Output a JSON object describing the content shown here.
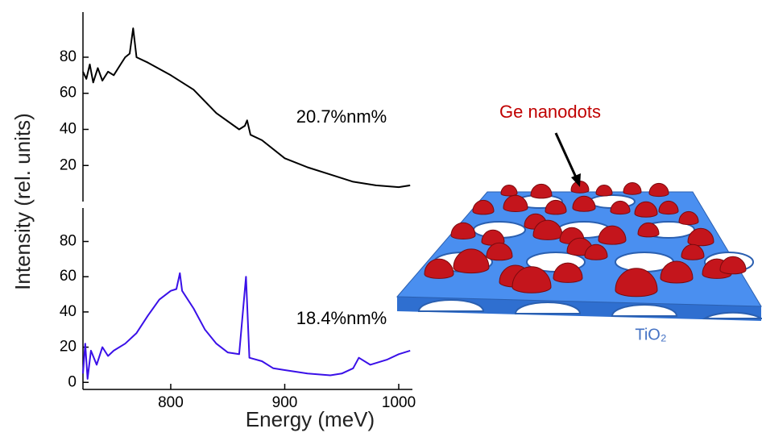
{
  "chart_data": [
    {
      "type": "line",
      "ylabel": "Intensity (rel. units)",
      "annotation": "20.7%nm%",
      "xlim": [
        723,
        1012
      ],
      "ylim": [
        0,
        105
      ],
      "yticks": [
        20,
        40,
        60,
        80
      ],
      "x": [
        723,
        726,
        729,
        732,
        736,
        740,
        745,
        750,
        756,
        760,
        764,
        767,
        770,
        780,
        800,
        820,
        840,
        860,
        865,
        867,
        870,
        880,
        900,
        920,
        940,
        960,
        980,
        1000,
        1010
      ],
      "series": [
        {
          "color": "#000000",
          "values": [
            72,
            68,
            76,
            66,
            74,
            67,
            72,
            70,
            76,
            80,
            82,
            96,
            80,
            77,
            70,
            62,
            49,
            40,
            42,
            45,
            37,
            34,
            24,
            19,
            15,
            11,
            9,
            8,
            9
          ]
        }
      ]
    },
    {
      "type": "line",
      "xlabel": "Energy (meV)",
      "annotation": "18.4%nm%",
      "xlim": [
        723,
        1012
      ],
      "ylim": [
        -4,
        99
      ],
      "yticks": [
        0,
        20,
        40,
        60,
        80
      ],
      "xticks": [
        800,
        900,
        1000
      ],
      "x": [
        723,
        725,
        727,
        730,
        735,
        740,
        745,
        750,
        760,
        770,
        780,
        790,
        800,
        805,
        808,
        810,
        820,
        830,
        840,
        850,
        860,
        866,
        869,
        880,
        890,
        900,
        920,
        940,
        950,
        960,
        965,
        975,
        990,
        1000,
        1010
      ],
      "series": [
        {
          "color": "#3a10e8",
          "values": [
            5,
            22,
            2,
            18,
            10,
            20,
            15,
            18,
            22,
            28,
            38,
            47,
            52,
            53,
            62,
            52,
            42,
            30,
            22,
            17,
            16,
            60,
            14,
            12,
            8,
            7,
            5,
            4,
            5,
            8,
            14,
            10,
            13,
            16,
            18
          ]
        }
      ]
    }
  ],
  "diagram": {
    "dots_label": "Ge nanodots",
    "substrate_label": "TiO₂"
  }
}
